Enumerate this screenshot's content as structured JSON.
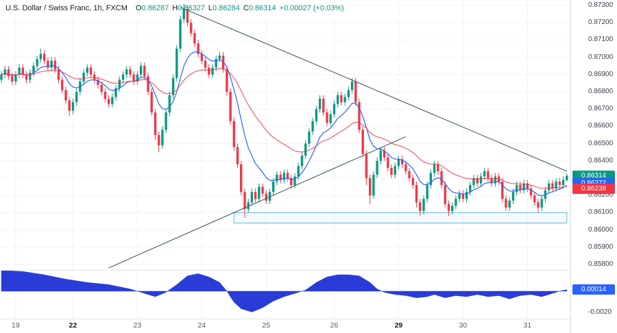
{
  "header": {
    "symbol_title": "U.S. Dollar / Swiss Franc, 1h, FXCM",
    "o_label": "O",
    "o_value": "0.86287",
    "h_label": "H",
    "h_value": "0.86327",
    "l_label": "L",
    "l_value": "0.86284",
    "c_label": "C",
    "c_value": "0.86314",
    "change": "+0.00027 (+0.03%)"
  },
  "colors": {
    "up": "#089981",
    "down": "#f23645",
    "ma_fast": "#2962ff",
    "ma_slow": "#f23645",
    "oscillator": "#2a3cd8",
    "trendline": "#455a64",
    "zone": "#67b7dc",
    "background": "#ffffff"
  },
  "price_axis": {
    "labels": [
      "0.87300",
      "0.87200",
      "0.87100",
      "0.87000",
      "0.86900",
      "0.86800",
      "0.86700",
      "0.86600",
      "0.86500",
      "0.86400",
      "0.86300",
      "0.86200",
      "0.86100",
      "0.86000",
      "0.85900",
      "0.85800"
    ],
    "badges": [
      {
        "name": "last-price-badge",
        "text": "0.86314",
        "price": 0.86314,
        "color": "#089981"
      },
      {
        "name": "ma-fast-badge",
        "text": "0.86272",
        "price": 0.86272,
        "color": "#2962ff"
      },
      {
        "name": "ma-slow-badge",
        "text": "0.86238",
        "price": 0.86238,
        "color": "#f23645"
      }
    ]
  },
  "time_axis": {
    "labels": [
      {
        "text": "19",
        "index": 4
      },
      {
        "text": "22",
        "index": 20,
        "emph": true
      },
      {
        "text": "23",
        "index": 38
      },
      {
        "text": "24",
        "index": 56
      },
      {
        "text": "25",
        "index": 74
      },
      {
        "text": "26",
        "index": 93
      },
      {
        "text": "29",
        "index": 111,
        "emph": true
      },
      {
        "text": "30",
        "index": 129
      },
      {
        "text": "31",
        "index": 147
      }
    ]
  },
  "chart_data": {
    "type": "candlestick",
    "title": "U.S. Dollar / Swiss Franc, 1h, FXCM",
    "x_axis_days": [
      "19",
      "22",
      "23",
      "24",
      "25",
      "26",
      "29",
      "30",
      "31"
    ],
    "ylim": [
      0.85768,
      0.87332
    ],
    "candles_ohlc": [
      [
        0.8687,
        0.8692,
        0.8685,
        0.869
      ],
      [
        0.869,
        0.8695,
        0.8688,
        0.8693
      ],
      [
        0.8693,
        0.8695,
        0.8687,
        0.8689
      ],
      [
        0.8689,
        0.8691,
        0.8684,
        0.8686
      ],
      [
        0.8686,
        0.8692,
        0.8684,
        0.869
      ],
      [
        0.869,
        0.8696,
        0.8688,
        0.8694
      ],
      [
        0.8694,
        0.8696,
        0.8688,
        0.869
      ],
      [
        0.869,
        0.8692,
        0.8685,
        0.8687
      ],
      [
        0.8687,
        0.8693,
        0.8685,
        0.8691
      ],
      [
        0.8691,
        0.8697,
        0.8689,
        0.8695
      ],
      [
        0.8695,
        0.8701,
        0.8693,
        0.8699
      ],
      [
        0.8699,
        0.8705,
        0.8697,
        0.8702
      ],
      [
        0.8702,
        0.8704,
        0.8696,
        0.8698
      ],
      [
        0.8698,
        0.87,
        0.8692,
        0.8694
      ],
      [
        0.8694,
        0.87,
        0.8692,
        0.8698
      ],
      [
        0.8698,
        0.87,
        0.8691,
        0.8693
      ],
      [
        0.8693,
        0.8695,
        0.8685,
        0.8687
      ],
      [
        0.8687,
        0.8689,
        0.8679,
        0.8681
      ],
      [
        0.8681,
        0.8683,
        0.8673,
        0.8675
      ],
      [
        0.8675,
        0.8677,
        0.8666,
        0.8669
      ],
      [
        0.8669,
        0.8676,
        0.8667,
        0.8674
      ],
      [
        0.8674,
        0.8682,
        0.8672,
        0.868
      ],
      [
        0.868,
        0.8688,
        0.8678,
        0.8686
      ],
      [
        0.8686,
        0.8693,
        0.8684,
        0.8691
      ],
      [
        0.8691,
        0.8696,
        0.8689,
        0.8694
      ],
      [
        0.8694,
        0.8696,
        0.8688,
        0.869
      ],
      [
        0.869,
        0.8692,
        0.8685,
        0.8687
      ],
      [
        0.8687,
        0.8689,
        0.8682,
        0.8684
      ],
      [
        0.8684,
        0.8686,
        0.8678,
        0.868
      ],
      [
        0.868,
        0.8682,
        0.8674,
        0.8676
      ],
      [
        0.8676,
        0.8678,
        0.8671,
        0.8673
      ],
      [
        0.8673,
        0.8679,
        0.8671,
        0.8677
      ],
      [
        0.8677,
        0.8684,
        0.8675,
        0.8682
      ],
      [
        0.8682,
        0.8689,
        0.868,
        0.8687
      ],
      [
        0.8687,
        0.8692,
        0.8685,
        0.869
      ],
      [
        0.869,
        0.8695,
        0.8688,
        0.8693
      ],
      [
        0.8693,
        0.8695,
        0.8688,
        0.869
      ],
      [
        0.869,
        0.8692,
        0.8684,
        0.8686
      ],
      [
        0.8686,
        0.8692,
        0.8684,
        0.869
      ],
      [
        0.869,
        0.8697,
        0.8688,
        0.8695
      ],
      [
        0.8695,
        0.8697,
        0.8687,
        0.8689
      ],
      [
        0.8689,
        0.8691,
        0.8678,
        0.868
      ],
      [
        0.868,
        0.8682,
        0.8666,
        0.8668
      ],
      [
        0.8668,
        0.867,
        0.8652,
        0.8655
      ],
      [
        0.8655,
        0.8657,
        0.8645,
        0.8649
      ],
      [
        0.8649,
        0.866,
        0.8647,
        0.8658
      ],
      [
        0.8658,
        0.867,
        0.8656,
        0.8668
      ],
      [
        0.8668,
        0.868,
        0.8666,
        0.8678
      ],
      [
        0.8678,
        0.869,
        0.8676,
        0.8688
      ],
      [
        0.8688,
        0.8707,
        0.8686,
        0.8705
      ],
      [
        0.8705,
        0.8724,
        0.8703,
        0.8722
      ],
      [
        0.8722,
        0.8731,
        0.872,
        0.8728
      ],
      [
        0.8728,
        0.873,
        0.8718,
        0.872
      ],
      [
        0.872,
        0.8722,
        0.8712,
        0.8714
      ],
      [
        0.8714,
        0.8716,
        0.8706,
        0.8708
      ],
      [
        0.8708,
        0.871,
        0.87,
        0.8702
      ],
      [
        0.8702,
        0.8704,
        0.8696,
        0.8698
      ],
      [
        0.8698,
        0.87,
        0.8692,
        0.8694
      ],
      [
        0.8694,
        0.8696,
        0.8688,
        0.869
      ],
      [
        0.869,
        0.8696,
        0.8688,
        0.8694
      ],
      [
        0.8694,
        0.8701,
        0.8692,
        0.8699
      ],
      [
        0.8699,
        0.8703,
        0.8697,
        0.8701
      ],
      [
        0.8701,
        0.8703,
        0.8691,
        0.8693
      ],
      [
        0.8693,
        0.8695,
        0.8678,
        0.868
      ],
      [
        0.868,
        0.8682,
        0.8661,
        0.8663
      ],
      [
        0.8663,
        0.8665,
        0.8646,
        0.8648
      ],
      [
        0.8648,
        0.865,
        0.8636,
        0.8638
      ],
      [
        0.8638,
        0.864,
        0.862,
        0.8622
      ],
      [
        0.8622,
        0.8624,
        0.8607,
        0.8612
      ],
      [
        0.8612,
        0.8618,
        0.861,
        0.8616
      ],
      [
        0.8616,
        0.8624,
        0.8614,
        0.8622
      ],
      [
        0.8622,
        0.8624,
        0.8616,
        0.8618
      ],
      [
        0.8618,
        0.8627,
        0.8616,
        0.8625
      ],
      [
        0.8625,
        0.8627,
        0.8619,
        0.8621
      ],
      [
        0.8621,
        0.8623,
        0.8615,
        0.8617
      ],
      [
        0.8617,
        0.8624,
        0.8615,
        0.8622
      ],
      [
        0.8622,
        0.863,
        0.862,
        0.8628
      ],
      [
        0.8628,
        0.8634,
        0.8626,
        0.8632
      ],
      [
        0.8632,
        0.8634,
        0.8627,
        0.8629
      ],
      [
        0.8629,
        0.8635,
        0.8627,
        0.8633
      ],
      [
        0.8633,
        0.8635,
        0.8628,
        0.863
      ],
      [
        0.863,
        0.8632,
        0.8624,
        0.8626
      ],
      [
        0.8626,
        0.8633,
        0.8624,
        0.8631
      ],
      [
        0.8631,
        0.8639,
        0.8629,
        0.8637
      ],
      [
        0.8637,
        0.8645,
        0.8635,
        0.8643
      ],
      [
        0.8643,
        0.8652,
        0.8641,
        0.865
      ],
      [
        0.865,
        0.8659,
        0.8648,
        0.8657
      ],
      [
        0.8657,
        0.8665,
        0.8655,
        0.8663
      ],
      [
        0.8663,
        0.8672,
        0.8661,
        0.867
      ],
      [
        0.867,
        0.8678,
        0.8668,
        0.8676
      ],
      [
        0.8676,
        0.8678,
        0.8666,
        0.8668
      ],
      [
        0.8668,
        0.867,
        0.866,
        0.8662
      ],
      [
        0.8662,
        0.8669,
        0.866,
        0.8667
      ],
      [
        0.8667,
        0.8675,
        0.8665,
        0.8673
      ],
      [
        0.8673,
        0.868,
        0.8671,
        0.8678
      ],
      [
        0.8678,
        0.868,
        0.8672,
        0.8674
      ],
      [
        0.8674,
        0.8679,
        0.8672,
        0.8677
      ],
      [
        0.8677,
        0.8683,
        0.8675,
        0.8681
      ],
      [
        0.8681,
        0.8688,
        0.8679,
        0.8686
      ],
      [
        0.8686,
        0.8688,
        0.8672,
        0.8674
      ],
      [
        0.8674,
        0.8676,
        0.8656,
        0.8658
      ],
      [
        0.8658,
        0.866,
        0.8642,
        0.8644
      ],
      [
        0.8644,
        0.8646,
        0.8626,
        0.863
      ],
      [
        0.863,
        0.8632,
        0.8615,
        0.862
      ],
      [
        0.862,
        0.8634,
        0.8618,
        0.8632
      ],
      [
        0.8632,
        0.8642,
        0.863,
        0.864
      ],
      [
        0.864,
        0.8648,
        0.8638,
        0.8646
      ],
      [
        0.8646,
        0.8648,
        0.864,
        0.8642
      ],
      [
        0.8642,
        0.8644,
        0.8634,
        0.8636
      ],
      [
        0.8636,
        0.8638,
        0.863,
        0.8632
      ],
      [
        0.8632,
        0.8639,
        0.863,
        0.8637
      ],
      [
        0.8637,
        0.8643,
        0.8635,
        0.8641
      ],
      [
        0.8641,
        0.8643,
        0.8636,
        0.8638
      ],
      [
        0.8638,
        0.864,
        0.8632,
        0.8634
      ],
      [
        0.8634,
        0.8636,
        0.8628,
        0.863
      ],
      [
        0.863,
        0.8632,
        0.8624,
        0.8626
      ],
      [
        0.8626,
        0.8628,
        0.8613,
        0.8616
      ],
      [
        0.8616,
        0.8618,
        0.8608,
        0.8611
      ],
      [
        0.8611,
        0.862,
        0.8609,
        0.8618
      ],
      [
        0.8618,
        0.8628,
        0.8616,
        0.8626
      ],
      [
        0.8626,
        0.8635,
        0.8624,
        0.8633
      ],
      [
        0.8633,
        0.864,
        0.8631,
        0.8638
      ],
      [
        0.8638,
        0.864,
        0.8632,
        0.8634
      ],
      [
        0.8634,
        0.8636,
        0.8624,
        0.8626
      ],
      [
        0.8626,
        0.8628,
        0.8613,
        0.8615
      ],
      [
        0.8615,
        0.8617,
        0.8608,
        0.8611
      ],
      [
        0.8611,
        0.8616,
        0.8609,
        0.8614
      ],
      [
        0.8614,
        0.862,
        0.8612,
        0.8618
      ],
      [
        0.8618,
        0.8623,
        0.8616,
        0.8621
      ],
      [
        0.8621,
        0.8623,
        0.8616,
        0.8618
      ],
      [
        0.8618,
        0.8624,
        0.8616,
        0.8622
      ],
      [
        0.8622,
        0.8628,
        0.862,
        0.8626
      ],
      [
        0.8626,
        0.8632,
        0.8624,
        0.863
      ],
      [
        0.863,
        0.8632,
        0.8625,
        0.8627
      ],
      [
        0.8627,
        0.8633,
        0.8625,
        0.8631
      ],
      [
        0.8631,
        0.8636,
        0.8629,
        0.8634
      ],
      [
        0.8634,
        0.8636,
        0.8628,
        0.863
      ],
      [
        0.863,
        0.8632,
        0.8625,
        0.8627
      ],
      [
        0.8627,
        0.8633,
        0.8625,
        0.8631
      ],
      [
        0.8631,
        0.8633,
        0.8626,
        0.8628
      ],
      [
        0.8628,
        0.863,
        0.8616,
        0.8618
      ],
      [
        0.8618,
        0.862,
        0.8611,
        0.8613
      ],
      [
        0.8613,
        0.8619,
        0.8611,
        0.8617
      ],
      [
        0.8617,
        0.8624,
        0.8615,
        0.8622
      ],
      [
        0.8622,
        0.8628,
        0.862,
        0.8626
      ],
      [
        0.8626,
        0.8628,
        0.8621,
        0.8623
      ],
      [
        0.8623,
        0.8629,
        0.8621,
        0.8627
      ],
      [
        0.8627,
        0.8629,
        0.8622,
        0.8624
      ],
      [
        0.8624,
        0.8626,
        0.8618,
        0.862
      ],
      [
        0.862,
        0.8622,
        0.8614,
        0.8616
      ],
      [
        0.8616,
        0.8618,
        0.861,
        0.8613
      ],
      [
        0.8613,
        0.862,
        0.8611,
        0.8618
      ],
      [
        0.8618,
        0.8625,
        0.8616,
        0.8623
      ],
      [
        0.8623,
        0.8629,
        0.8621,
        0.8627
      ],
      [
        0.8627,
        0.8629,
        0.8622,
        0.8624
      ],
      [
        0.8624,
        0.863,
        0.8622,
        0.8628
      ],
      [
        0.8628,
        0.863,
        0.8624,
        0.8626
      ],
      [
        0.8626,
        0.8631,
        0.8624,
        0.8629
      ],
      [
        0.86287,
        0.86327,
        0.86284,
        0.86314
      ]
    ],
    "moving_averages": {
      "fast": {
        "color": "#2962ff",
        "period": 10,
        "last_value": 0.86272
      },
      "slow": {
        "color": "#f23645",
        "period": 30,
        "last_value": 0.86238
      }
    },
    "drawings": {
      "descending_trendline": {
        "from": [
          50,
          0.8729
        ],
        "to": [
          158,
          0.8634
        ]
      },
      "ascending_trendline": {
        "from": [
          30,
          0.8578
        ],
        "to": [
          113,
          0.8654
        ]
      },
      "rectangle": {
        "from": [
          65,
          0.861
        ],
        "to": [
          158,
          0.8604
        ]
      }
    },
    "indicator_pane": {
      "type": "area",
      "color": "#2a3cd8",
      "last_value": 0.00014,
      "badge_text": "0.00014",
      "badge_color": "#2962ff",
      "axis_label": "-0.0020",
      "axis_value": -0.002,
      "ylim": [
        -0.002,
        0.002
      ],
      "points": [
        [
          0,
          0.0019
        ],
        [
          6,
          0.0018
        ],
        [
          12,
          0.0015
        ],
        [
          18,
          0.0011
        ],
        [
          24,
          0.0008
        ],
        [
          30,
          0.0006
        ],
        [
          36,
          0.0002
        ],
        [
          40,
          -0.0002
        ],
        [
          43,
          -0.0005
        ],
        [
          46,
          -0.0001
        ],
        [
          49,
          0.0006
        ],
        [
          52,
          0.0014
        ],
        [
          55,
          0.0016
        ],
        [
          58,
          0.0013
        ],
        [
          61,
          0.0008
        ],
        [
          63,
          0.0
        ],
        [
          65,
          -0.001
        ],
        [
          67,
          -0.0016
        ],
        [
          70,
          -0.0019
        ],
        [
          73,
          -0.0015
        ],
        [
          76,
          -0.0009
        ],
        [
          79,
          -0.0005
        ],
        [
          82,
          -0.0002
        ],
        [
          85,
          0.0001
        ],
        [
          88,
          0.0008
        ],
        [
          91,
          0.0013
        ],
        [
          94,
          0.0015
        ],
        [
          97,
          0.0015
        ],
        [
          100,
          0.0014
        ],
        [
          103,
          0.0008
        ],
        [
          105,
          0.0002
        ],
        [
          107,
          -0.0001
        ],
        [
          110,
          -0.0003
        ],
        [
          113,
          -0.0004
        ],
        [
          116,
          -0.0006
        ],
        [
          119,
          -0.0005
        ],
        [
          121,
          -0.0003
        ],
        [
          124,
          -0.0006
        ],
        [
          127,
          -0.0004
        ],
        [
          130,
          -0.0005
        ],
        [
          133,
          -0.0003
        ],
        [
          136,
          -0.0005
        ],
        [
          139,
          -0.0004
        ],
        [
          142,
          -0.0007
        ],
        [
          145,
          -0.0004
        ],
        [
          148,
          -0.0003
        ],
        [
          151,
          -0.0005
        ],
        [
          154,
          -0.0002
        ],
        [
          156,
          0.0
        ],
        [
          158,
          0.00014
        ]
      ]
    }
  }
}
